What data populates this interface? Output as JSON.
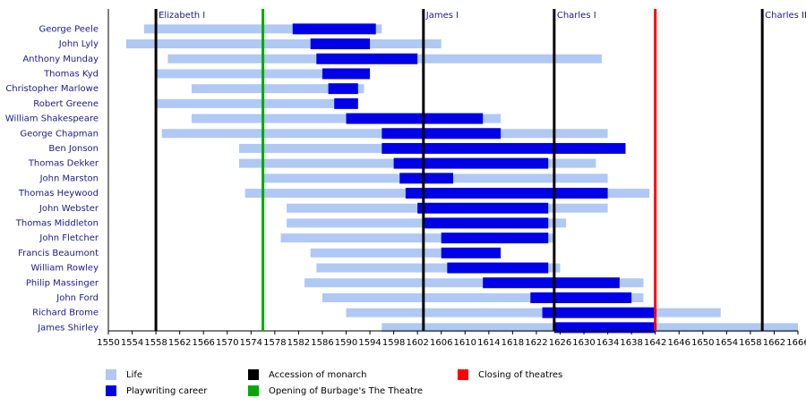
{
  "chart_data": {
    "type": "timeline",
    "categories": [
      "George Peele",
      "John Lyly",
      "Anthony Munday",
      "Thomas Kyd",
      "Christopher Marlowe",
      "Robert Greene",
      "William Shakespeare",
      "George Chapman",
      "Ben Jonson",
      "Thomas Dekker",
      "John Marston",
      "Thomas Heywood",
      "John Webster",
      "Thomas Middleton",
      "John Fletcher",
      "Francis Beaumont",
      "William Rowley",
      "Philip Massinger",
      "John Ford",
      "Richard Brome",
      "James Shirley"
    ],
    "series": [
      {
        "name": "Life",
        "color": "#b0c8f4",
        "values": [
          [
            1556,
            1596
          ],
          [
            1553,
            1606
          ],
          [
            1560,
            1633
          ],
          [
            1558,
            1594
          ],
          [
            1564,
            1593
          ],
          [
            1558,
            1592
          ],
          [
            1564,
            1616
          ],
          [
            1559,
            1634
          ],
          [
            1572,
            1637
          ],
          [
            1572,
            1632
          ],
          [
            1576,
            1634
          ],
          [
            1573,
            1641
          ],
          [
            1580,
            1634
          ],
          [
            1580,
            1627
          ],
          [
            1579,
            1625
          ],
          [
            1584,
            1616
          ],
          [
            1585,
            1626
          ],
          [
            1583,
            1640
          ],
          [
            1586,
            1640
          ],
          [
            1590,
            1653
          ],
          [
            1596,
            1666
          ]
        ]
      },
      {
        "name": "Playwriting career",
        "color": "#0000e6",
        "values": [
          [
            1581,
            1595
          ],
          [
            1584,
            1594
          ],
          [
            1585,
            1602
          ],
          [
            1586,
            1594
          ],
          [
            1587,
            1592
          ],
          [
            1588,
            1592
          ],
          [
            1590,
            1613
          ],
          [
            1596,
            1616
          ],
          [
            1596,
            1637
          ],
          [
            1598,
            1624
          ],
          [
            1599,
            1608
          ],
          [
            1600,
            1634
          ],
          [
            1602,
            1624
          ],
          [
            1603,
            1624
          ],
          [
            1606,
            1624
          ],
          [
            1606,
            1616
          ],
          [
            1607,
            1624
          ],
          [
            1613,
            1636
          ],
          [
            1621,
            1638
          ],
          [
            1623,
            1642
          ],
          [
            1625,
            1642
          ]
        ]
      }
    ],
    "markers": [
      {
        "name": "Accession of monarch",
        "color": "#000000",
        "x": [
          1558,
          1603,
          1625,
          1660
        ],
        "labels": [
          "Elizabeth I",
          "James I",
          "Charles I",
          "Charles II"
        ]
      },
      {
        "name": "Opening of Burbage's The Theatre",
        "color": "#00aa00",
        "x": [
          1576
        ]
      },
      {
        "name": "Closing of theatres",
        "color": "#ff0000",
        "x": [
          1642
        ]
      }
    ],
    "xlim": [
      1550,
      1666
    ],
    "xticks": [
      1550,
      1554,
      1558,
      1562,
      1566,
      1570,
      1574,
      1578,
      1582,
      1586,
      1590,
      1594,
      1598,
      1602,
      1606,
      1610,
      1614,
      1618,
      1622,
      1626,
      1630,
      1634,
      1638,
      1642,
      1646,
      1650,
      1654,
      1658,
      1662,
      1666
    ]
  }
}
